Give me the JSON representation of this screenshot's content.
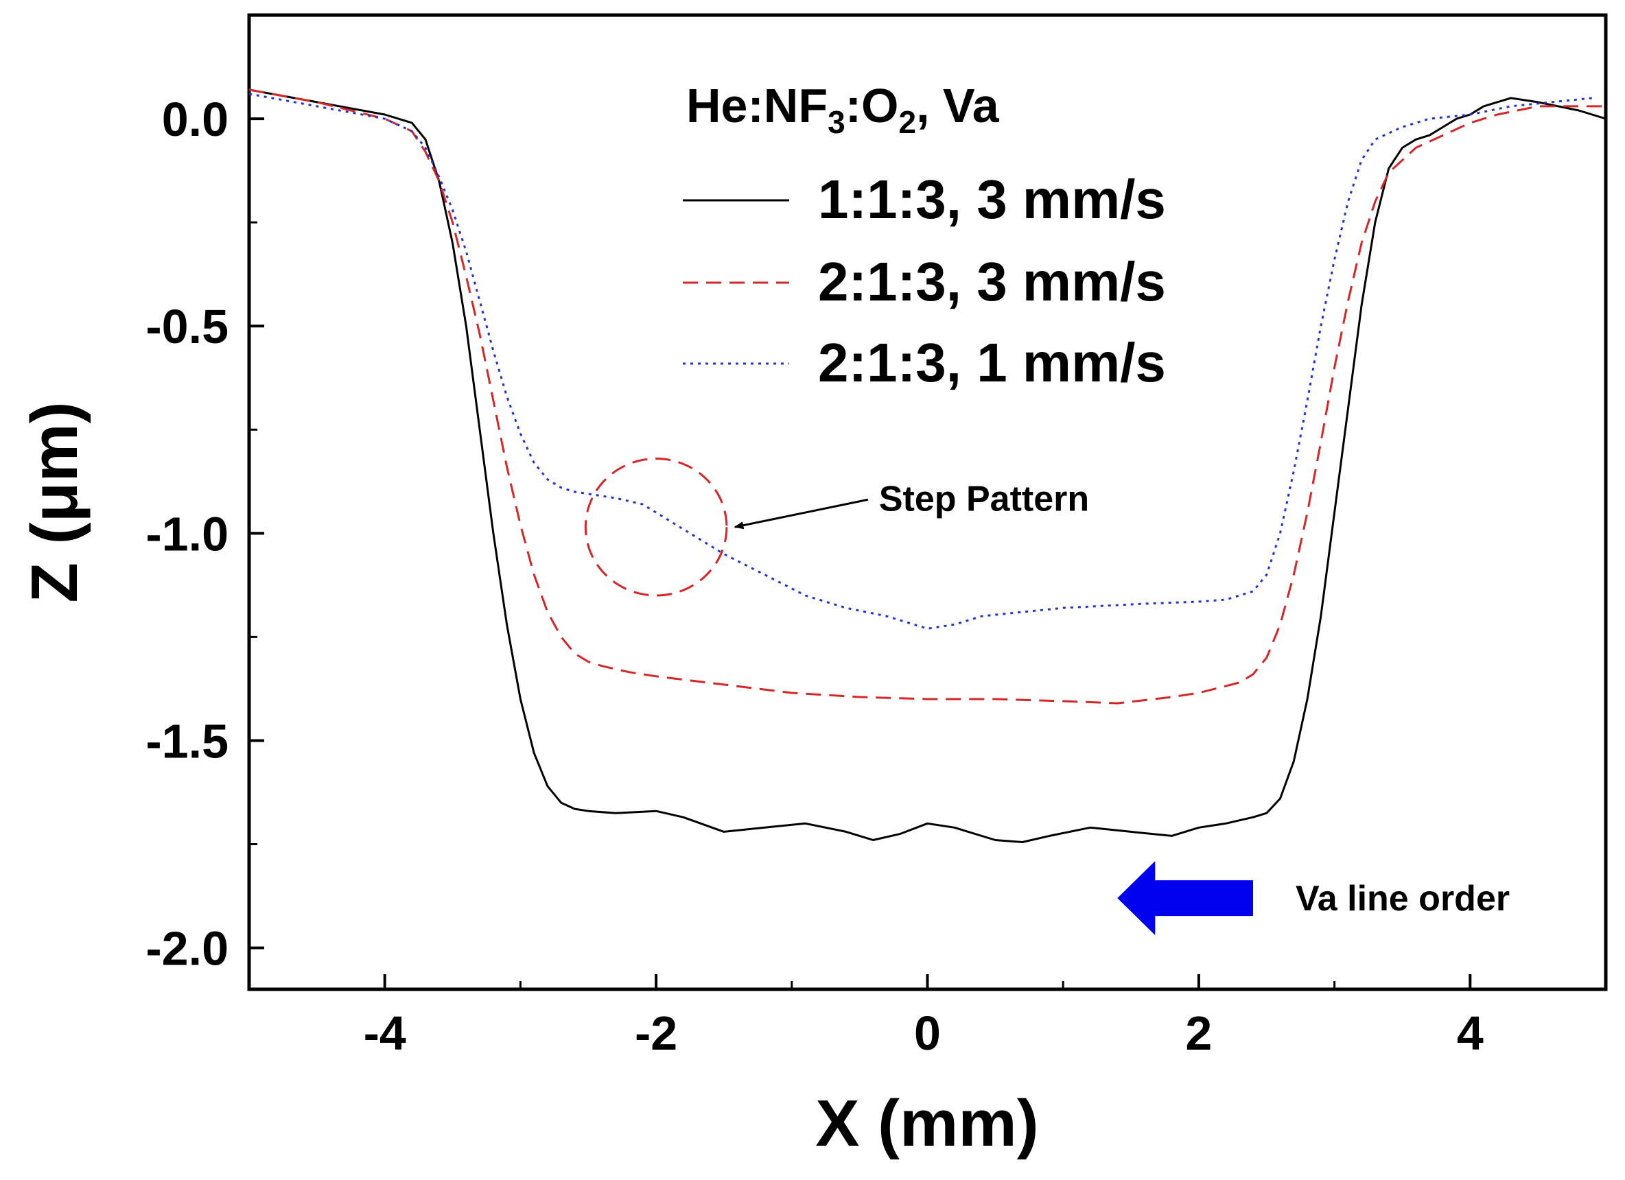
{
  "chart_data": {
    "type": "line",
    "title": "",
    "xlabel": "X (mm)",
    "ylabel": "Z (μm)",
    "xlim": [
      -5,
      5
    ],
    "ylim": [
      -2.1,
      0.25
    ],
    "xticks": [
      -4,
      -2,
      0,
      2,
      4
    ],
    "xtick_labels": [
      "-4",
      "-2",
      "0",
      "2",
      "4"
    ],
    "yticks": [
      0.0,
      -0.5,
      -1.0,
      -1.5,
      -2.0
    ],
    "ytick_labels": [
      "0.0",
      "-0.5",
      "-1.0",
      "-1.5",
      "-2.0"
    ],
    "legend": {
      "position": "top-center",
      "title_parts": {
        "a": "He:NF",
        "b": "3",
        "c": ":O",
        "d": "2",
        "e": ", Va"
      }
    },
    "series": [
      {
        "name": "1:1:3, 3 mm/s",
        "color": "#000000",
        "style": "solid",
        "x": [
          -5.0,
          -4.5,
          -4.0,
          -3.8,
          -3.7,
          -3.6,
          -3.5,
          -3.4,
          -3.3,
          -3.2,
          -3.1,
          -3.0,
          -2.9,
          -2.8,
          -2.7,
          -2.6,
          -2.5,
          -2.3,
          -2.0,
          -1.8,
          -1.5,
          -1.2,
          -0.9,
          -0.6,
          -0.4,
          -0.2,
          0.0,
          0.2,
          0.5,
          0.7,
          0.9,
          1.2,
          1.5,
          1.8,
          2.0,
          2.2,
          2.4,
          2.5,
          2.6,
          2.7,
          2.8,
          2.9,
          3.0,
          3.1,
          3.2,
          3.3,
          3.4,
          3.5,
          3.6,
          3.7,
          3.8,
          3.9,
          4.0,
          4.1,
          4.2,
          4.3,
          4.5,
          4.8,
          5.0
        ],
        "y": [
          0.07,
          0.04,
          0.01,
          -0.01,
          -0.05,
          -0.15,
          -0.3,
          -0.5,
          -0.75,
          -1.0,
          -1.22,
          -1.4,
          -1.53,
          -1.61,
          -1.65,
          -1.665,
          -1.67,
          -1.675,
          -1.67,
          -1.685,
          -1.72,
          -1.71,
          -1.7,
          -1.72,
          -1.74,
          -1.725,
          -1.7,
          -1.71,
          -1.74,
          -1.745,
          -1.73,
          -1.71,
          -1.72,
          -1.73,
          -1.71,
          -1.7,
          -1.685,
          -1.675,
          -1.64,
          -1.55,
          -1.4,
          -1.2,
          -0.95,
          -0.7,
          -0.45,
          -0.25,
          -0.12,
          -0.07,
          -0.05,
          -0.04,
          -0.02,
          0.0,
          0.01,
          0.03,
          0.04,
          0.05,
          0.04,
          0.02,
          0.0
        ]
      },
      {
        "name": "2:1:3, 3 mm/s",
        "color": "#d62728",
        "style": "dashed",
        "x": [
          -5.0,
          -4.5,
          -4.0,
          -3.8,
          -3.7,
          -3.6,
          -3.5,
          -3.4,
          -3.3,
          -3.2,
          -3.1,
          -3.0,
          -2.9,
          -2.8,
          -2.7,
          -2.6,
          -2.5,
          -2.4,
          -2.2,
          -2.0,
          -1.5,
          -1.0,
          -0.5,
          0.0,
          0.5,
          1.0,
          1.4,
          1.8,
          2.0,
          2.3,
          2.4,
          2.5,
          2.6,
          2.7,
          2.8,
          2.9,
          3.0,
          3.1,
          3.2,
          3.3,
          3.4,
          3.6,
          3.8,
          4.0,
          4.2,
          4.5,
          5.0
        ],
        "y": [
          0.07,
          0.04,
          0.0,
          -0.03,
          -0.08,
          -0.15,
          -0.25,
          -0.38,
          -0.52,
          -0.68,
          -0.84,
          -0.98,
          -1.1,
          -1.19,
          -1.25,
          -1.29,
          -1.31,
          -1.32,
          -1.335,
          -1.345,
          -1.365,
          -1.385,
          -1.395,
          -1.4,
          -1.4,
          -1.405,
          -1.41,
          -1.395,
          -1.385,
          -1.36,
          -1.34,
          -1.3,
          -1.22,
          -1.1,
          -0.95,
          -0.78,
          -0.6,
          -0.44,
          -0.3,
          -0.2,
          -0.13,
          -0.07,
          -0.04,
          -0.01,
          0.01,
          0.03,
          0.03
        ]
      },
      {
        "name": "2:1:3, 1 mm/s",
        "color": "#2233cc",
        "style": "dotted",
        "x": [
          -5.0,
          -4.5,
          -4.0,
          -3.8,
          -3.7,
          -3.6,
          -3.5,
          -3.4,
          -3.3,
          -3.2,
          -3.1,
          -3.0,
          -2.9,
          -2.8,
          -2.7,
          -2.6,
          -2.5,
          -2.3,
          -2.1,
          -2.0,
          -1.8,
          -1.5,
          -1.2,
          -0.9,
          -0.6,
          -0.3,
          0.0,
          0.2,
          0.4,
          0.7,
          1.0,
          1.3,
          1.6,
          2.0,
          2.2,
          2.4,
          2.5,
          2.6,
          2.7,
          2.8,
          2.9,
          3.0,
          3.1,
          3.2,
          3.3,
          3.5,
          3.7,
          4.0,
          4.3,
          4.6,
          4.9
        ],
        "y": [
          0.06,
          0.03,
          0.0,
          -0.03,
          -0.07,
          -0.14,
          -0.22,
          -0.32,
          -0.44,
          -0.56,
          -0.67,
          -0.76,
          -0.83,
          -0.87,
          -0.89,
          -0.9,
          -0.905,
          -0.915,
          -0.93,
          -0.95,
          -0.99,
          -1.05,
          -1.1,
          -1.15,
          -1.18,
          -1.2,
          -1.23,
          -1.22,
          -1.2,
          -1.19,
          -1.18,
          -1.175,
          -1.17,
          -1.165,
          -1.16,
          -1.14,
          -1.1,
          -1.0,
          -0.85,
          -0.68,
          -0.5,
          -0.34,
          -0.2,
          -0.1,
          -0.05,
          -0.02,
          0.0,
          0.01,
          0.03,
          0.04,
          0.05
        ]
      }
    ],
    "annotations": {
      "step_pattern": {
        "text": "Step Pattern",
        "circle_center": [
          -2.0,
          -0.985
        ],
        "circle_radius_x": 0.52,
        "circle_radius_y": 0.165,
        "arrow_to": [
          -1.45,
          -0.985
        ]
      },
      "va_line_order": {
        "text": "Va line order",
        "arrow_direction": "left",
        "color": "#0000ee",
        "arrow_span_x": [
          1.4,
          2.4
        ],
        "arrow_y": -1.88
      }
    }
  }
}
